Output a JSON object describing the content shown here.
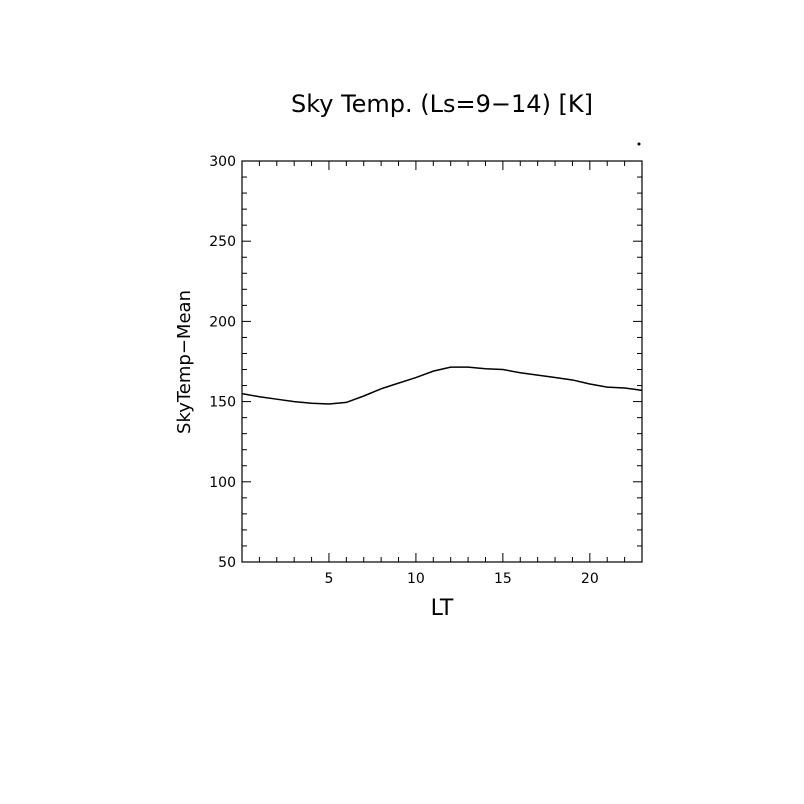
{
  "chart_data": {
    "type": "line",
    "title": "Sky Temp. (Ls=9−14) [K]",
    "xlabel": "LT",
    "ylabel": "SkyTemp−Mean",
    "xlim": [
      0,
      23
    ],
    "ylim": [
      50,
      300
    ],
    "xticks": [
      5,
      10,
      15,
      20
    ],
    "xtick_labels": [
      "5",
      "10",
      "15",
      "20"
    ],
    "yticks": [
      50,
      100,
      150,
      200,
      250,
      300
    ],
    "ytick_labels": [
      "50",
      "100",
      "150",
      "200",
      "250",
      "300"
    ],
    "grid": false,
    "series": [
      {
        "x": [
          0,
          1,
          2,
          3,
          4,
          5,
          6,
          7,
          8,
          9,
          10,
          11,
          12,
          13,
          14,
          15,
          16,
          17,
          18,
          19,
          20,
          21,
          22,
          23
        ],
        "y": [
          155,
          153,
          151.5,
          150,
          149,
          148.5,
          149.5,
          153.5,
          158,
          161.5,
          165,
          169,
          171.5,
          171.5,
          170.5,
          170,
          168,
          166.5,
          165,
          163.5,
          161,
          159,
          158.5,
          157
        ]
      }
    ]
  }
}
